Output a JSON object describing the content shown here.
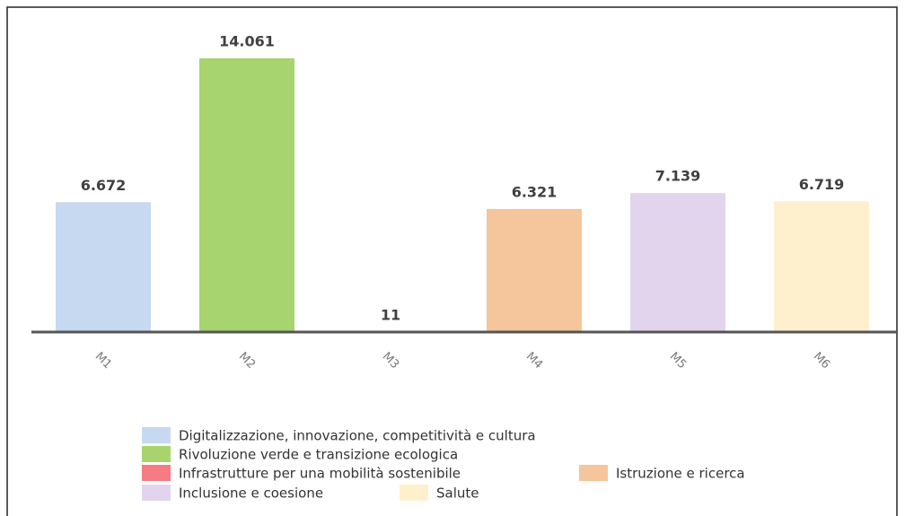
{
  "chart_data": {
    "type": "bar",
    "categories": [
      "M1",
      "M2",
      "M3",
      "M4",
      "M5",
      "M6"
    ],
    "values": [
      6672,
      14061,
      11,
      6321,
      7139,
      6719
    ],
    "value_labels": [
      "6.672",
      "14.061",
      "11",
      "6.321",
      "7.139",
      "6.719"
    ],
    "colors": [
      "#c6d9f0",
      "#a7d46f",
      "#f77b82",
      "#f5c59b",
      "#e3d4ed",
      "#fff0cd"
    ],
    "legend": [
      "Digitalizzazione, innovazione, competitività e cultura",
      "Rivoluzione verde e transizione ecologica",
      "Infrastrutture per una mobilità sostenibile",
      "Istruzione e ricerca",
      "Inclusione e coesione",
      "Salute"
    ]
  }
}
